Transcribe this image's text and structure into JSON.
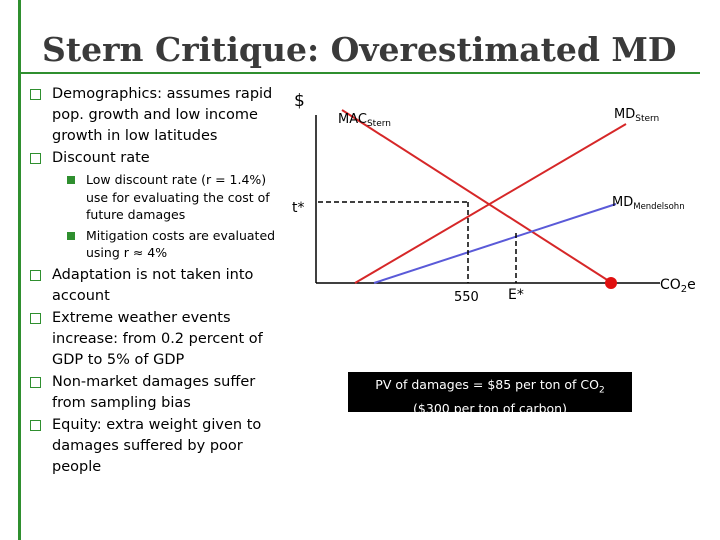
{
  "title": "Stern Critique: Overestimated MD",
  "bullets": [
    {
      "text": "Demographics: assumes rapid pop. growth and low income growth in low latitudes"
    },
    {
      "text": "Discount rate"
    },
    {
      "text": "Low discount rate  (r = 1.4%) use for evaluating the cost of future damages",
      "sub": true
    },
    {
      "text": "Mitigation costs are evaluated using r ≈ 4%",
      "sub": true
    },
    {
      "text": "Adaptation is not taken into account"
    },
    {
      "text": "Extreme weather events increase: from 0.2 percent of GDP to 5% of GDP"
    },
    {
      "text": "Non-market damages suffer from sampling bias"
    },
    {
      "text": "Equity: extra weight given to damages suffered by poor people"
    }
  ],
  "diagram": {
    "y_axis_label": "$",
    "x_axis_label_main": "CO",
    "x_axis_label_sub": "2",
    "x_axis_label_tail": "e",
    "t_star": "t*",
    "mac_main": "MAC",
    "mac_sub": "Stern",
    "md_stern_main": "MD",
    "md_stern_sub": "Stern",
    "md_mendel_main": "MD",
    "md_mendel_sub": "Mendelsohn",
    "x_tick_550": "550",
    "x_tick_estar": "E*",
    "colors": {
      "red": "#d62728",
      "blue": "#5a5ad8",
      "axis": "#000000"
    }
  },
  "pv_box": {
    "line1": "PV of damages = $85 per ton of CO",
    "line1_sub": "2",
    "line2": "($300 per ton of carbon)"
  }
}
